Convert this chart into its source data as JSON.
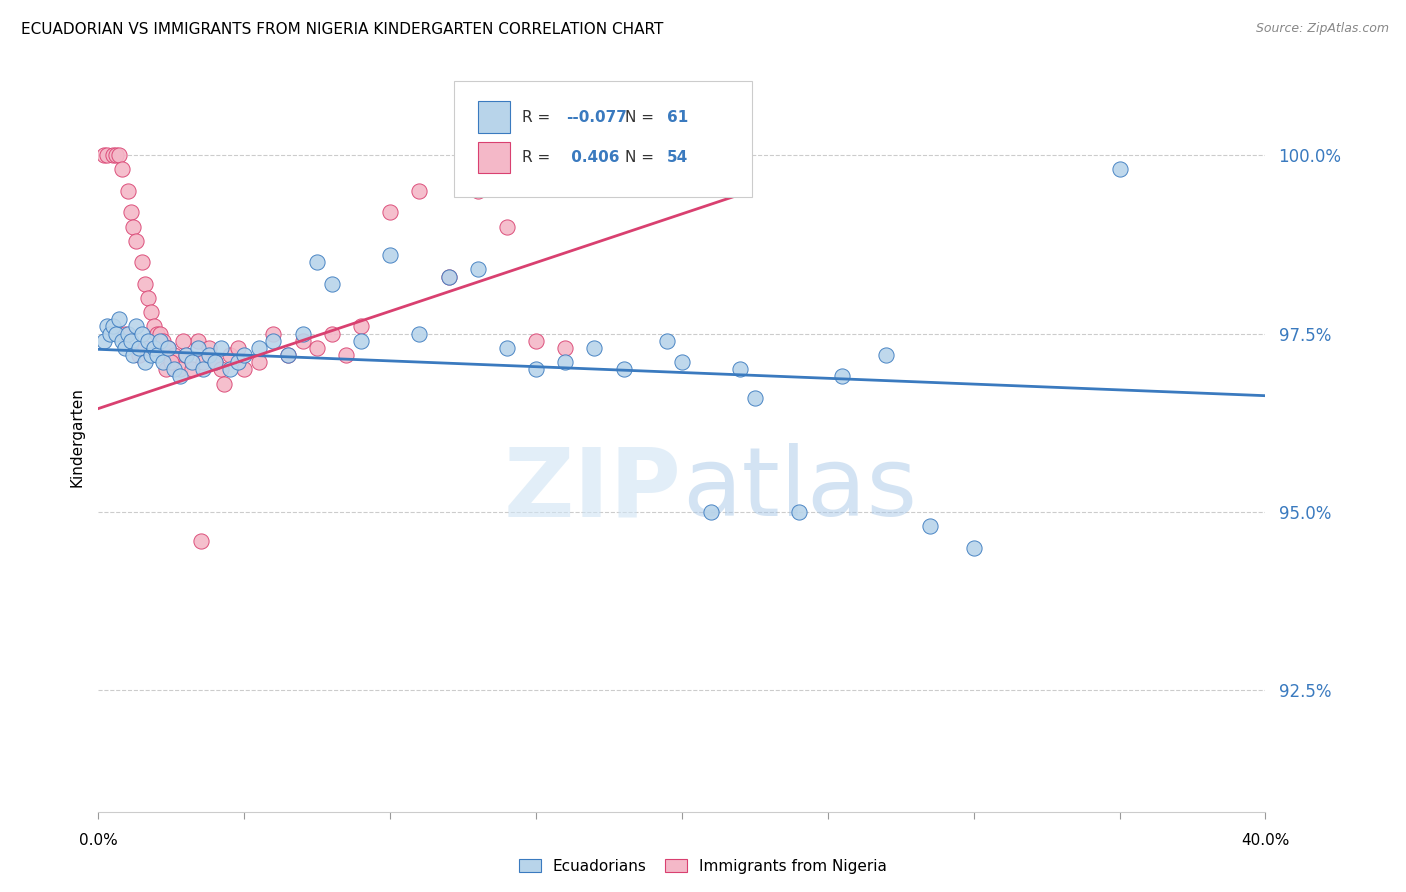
{
  "title": "ECUADORIAN VS IMMIGRANTS FROM NIGERIA KINDERGARTEN CORRELATION CHART",
  "source": "Source: ZipAtlas.com",
  "ylabel": "Kindergarten",
  "blue_label": "Ecuadorians",
  "pink_label": "Immigrants from Nigeria",
  "xmin": 0.0,
  "xmax": 40.0,
  "ymin": 90.8,
  "ymax": 101.3,
  "yticks": [
    92.5,
    95.0,
    97.5,
    100.0
  ],
  "blue_color": "#b8d4ea",
  "pink_color": "#f4b8c8",
  "trendline_blue_color": "#3a7abf",
  "trendline_pink_color": "#d94070",
  "legend_r_blue": "-0.077",
  "legend_n_blue": "61",
  "legend_r_pink": "0.406",
  "legend_n_pink": "54",
  "blue_trend_x": [
    0.0,
    40.0
  ],
  "blue_trend_y": [
    97.28,
    96.63
  ],
  "pink_trend_x": [
    0.0,
    22.0
  ],
  "pink_trend_y": [
    96.45,
    99.45
  ],
  "blue_scatter": [
    [
      0.2,
      97.4
    ],
    [
      0.3,
      97.6
    ],
    [
      0.4,
      97.5
    ],
    [
      0.5,
      97.6
    ],
    [
      0.6,
      97.5
    ],
    [
      0.7,
      97.7
    ],
    [
      0.8,
      97.4
    ],
    [
      0.9,
      97.3
    ],
    [
      1.0,
      97.5
    ],
    [
      1.1,
      97.4
    ],
    [
      1.2,
      97.2
    ],
    [
      1.3,
      97.6
    ],
    [
      1.4,
      97.3
    ],
    [
      1.5,
      97.5
    ],
    [
      1.6,
      97.1
    ],
    [
      1.7,
      97.4
    ],
    [
      1.8,
      97.2
    ],
    [
      1.9,
      97.3
    ],
    [
      2.0,
      97.2
    ],
    [
      2.1,
      97.4
    ],
    [
      2.2,
      97.1
    ],
    [
      2.4,
      97.3
    ],
    [
      2.6,
      97.0
    ],
    [
      2.8,
      96.9
    ],
    [
      3.0,
      97.2
    ],
    [
      3.2,
      97.1
    ],
    [
      3.4,
      97.3
    ],
    [
      3.6,
      97.0
    ],
    [
      3.8,
      97.2
    ],
    [
      4.0,
      97.1
    ],
    [
      4.2,
      97.3
    ],
    [
      4.5,
      97.0
    ],
    [
      4.8,
      97.1
    ],
    [
      5.0,
      97.2
    ],
    [
      5.5,
      97.3
    ],
    [
      6.0,
      97.4
    ],
    [
      6.5,
      97.2
    ],
    [
      7.0,
      97.5
    ],
    [
      7.5,
      98.5
    ],
    [
      8.0,
      98.2
    ],
    [
      9.0,
      97.4
    ],
    [
      10.0,
      98.6
    ],
    [
      11.0,
      97.5
    ],
    [
      12.0,
      98.3
    ],
    [
      13.0,
      98.4
    ],
    [
      14.0,
      97.3
    ],
    [
      15.0,
      97.0
    ],
    [
      16.0,
      97.1
    ],
    [
      17.0,
      97.3
    ],
    [
      18.0,
      97.0
    ],
    [
      19.5,
      97.4
    ],
    [
      20.0,
      97.1
    ],
    [
      21.0,
      95.0
    ],
    [
      22.5,
      96.6
    ],
    [
      24.0,
      95.0
    ],
    [
      25.5,
      96.9
    ],
    [
      27.0,
      97.2
    ],
    [
      28.5,
      94.8
    ],
    [
      30.0,
      94.5
    ],
    [
      22.0,
      97.0
    ],
    [
      35.0,
      99.8
    ]
  ],
  "pink_scatter": [
    [
      0.2,
      100.0
    ],
    [
      0.3,
      100.0
    ],
    [
      0.5,
      100.0
    ],
    [
      0.6,
      100.0
    ],
    [
      0.7,
      100.0
    ],
    [
      0.8,
      99.8
    ],
    [
      1.0,
      99.5
    ],
    [
      1.1,
      99.2
    ],
    [
      1.2,
      99.0
    ],
    [
      1.3,
      98.8
    ],
    [
      1.5,
      98.5
    ],
    [
      1.6,
      98.2
    ],
    [
      1.7,
      98.0
    ],
    [
      1.8,
      97.8
    ],
    [
      1.9,
      97.6
    ],
    [
      2.0,
      97.5
    ],
    [
      2.1,
      97.5
    ],
    [
      2.2,
      97.4
    ],
    [
      2.4,
      97.3
    ],
    [
      2.6,
      97.2
    ],
    [
      2.8,
      97.0
    ],
    [
      3.0,
      97.2
    ],
    [
      3.2,
      97.0
    ],
    [
      3.4,
      97.4
    ],
    [
      3.6,
      97.1
    ],
    [
      3.8,
      97.3
    ],
    [
      4.0,
      97.1
    ],
    [
      4.2,
      97.0
    ],
    [
      4.5,
      97.2
    ],
    [
      4.8,
      97.3
    ],
    [
      5.0,
      97.0
    ],
    [
      5.5,
      97.1
    ],
    [
      6.0,
      97.5
    ],
    [
      6.5,
      97.2
    ],
    [
      7.0,
      97.4
    ],
    [
      7.5,
      97.3
    ],
    [
      8.0,
      97.5
    ],
    [
      8.5,
      97.2
    ],
    [
      9.0,
      97.6
    ],
    [
      10.0,
      99.2
    ],
    [
      11.0,
      99.5
    ],
    [
      12.0,
      98.3
    ],
    [
      13.0,
      99.5
    ],
    [
      14.0,
      99.0
    ],
    [
      15.0,
      97.4
    ],
    [
      16.0,
      97.3
    ],
    [
      3.5,
      94.6
    ],
    [
      4.3,
      96.8
    ],
    [
      1.4,
      97.2
    ],
    [
      2.3,
      97.0
    ],
    [
      0.9,
      97.5
    ],
    [
      1.6,
      97.3
    ],
    [
      2.5,
      97.1
    ],
    [
      2.9,
      97.4
    ]
  ]
}
